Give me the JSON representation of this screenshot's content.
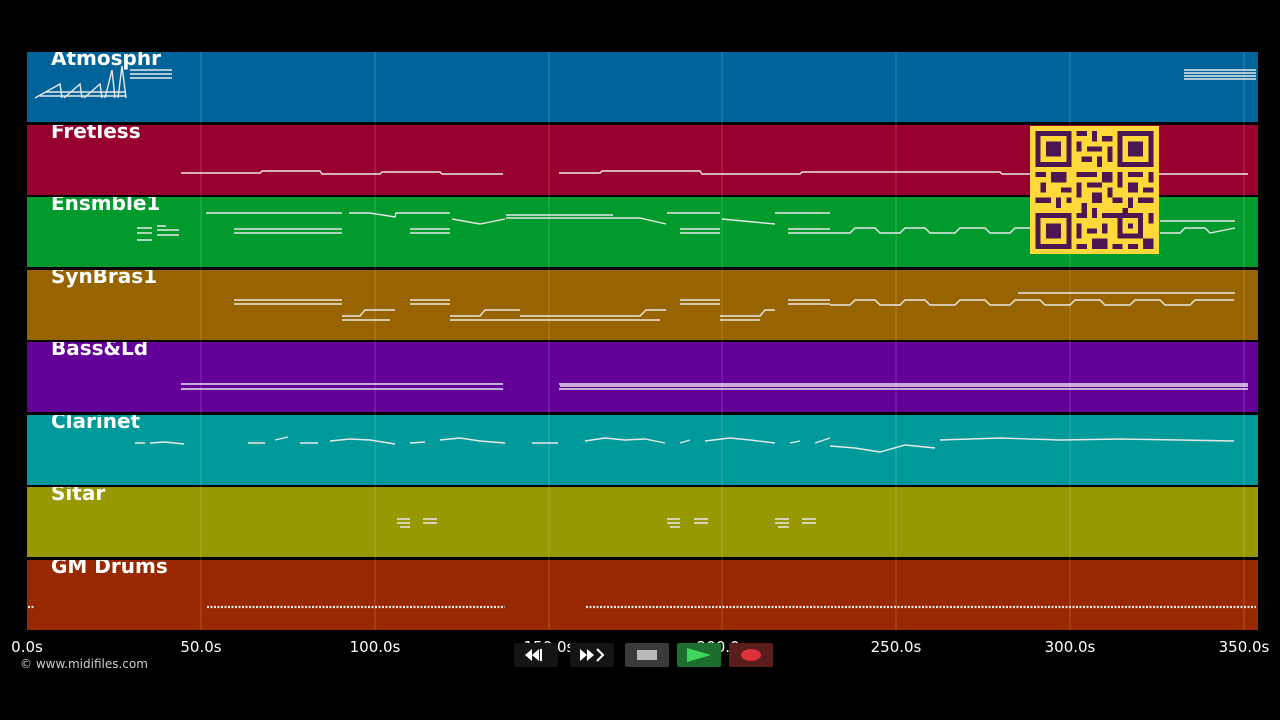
{
  "tracks": [
    {
      "name": "Atmosphr",
      "color": "#00649b"
    },
    {
      "name": "Fretless",
      "color": "#98002e"
    },
    {
      "name": "Ensmble1",
      "color": "#019a2c"
    },
    {
      "name": "SynBras1",
      "color": "#986400"
    },
    {
      "name": "Bass&Ld",
      "color": "#620098"
    },
    {
      "name": "Clarinet",
      "color": "#009a9a"
    },
    {
      "name": "Sitar",
      "color": "#989800"
    },
    {
      "name": "GM Drums",
      "color": "#982800"
    }
  ],
  "timeline": {
    "unit": "s",
    "max_seconds": 352,
    "ticks": [
      {
        "value": 0,
        "label": "0.0s"
      },
      {
        "value": 50,
        "label": "50.0s"
      },
      {
        "value": 100,
        "label": "100.0s"
      },
      {
        "value": 150,
        "label": "150.0s"
      },
      {
        "value": 200,
        "label": "200.0s"
      },
      {
        "value": 250,
        "label": "250.0s"
      },
      {
        "value": 300,
        "label": "300.0s"
      },
      {
        "value": 350,
        "label": "350.0s"
      }
    ]
  },
  "copyright": "© www.midifiles.com",
  "transport": {
    "rewind_icon": "rewind-icon",
    "fast_forward_icon": "fast-forward-icon",
    "stop_icon": "stop-icon",
    "play_icon": "play-icon",
    "record_icon": "record-icon"
  },
  "overlay": {
    "qr_icon": "qr-code-icon",
    "qr_color": "#ffd83a"
  }
}
